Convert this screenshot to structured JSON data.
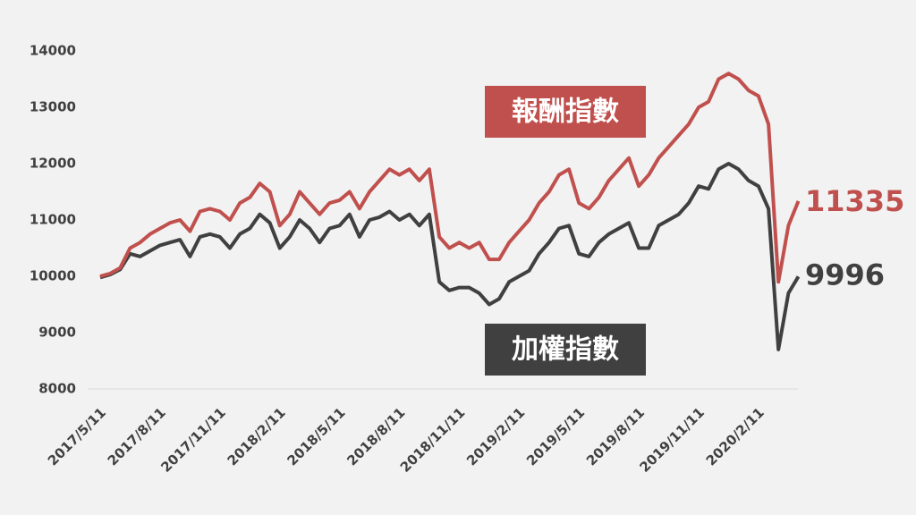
{
  "chart_data": {
    "type": "line",
    "categories": [
      "2017/5/11",
      null,
      null,
      null,
      null,
      null,
      "2017/8/11",
      null,
      null,
      null,
      null,
      null,
      "2017/11/11",
      null,
      null,
      null,
      null,
      null,
      "2018/2/11",
      null,
      null,
      null,
      null,
      null,
      "2018/5/11",
      null,
      null,
      null,
      null,
      null,
      "2018/8/11",
      null,
      null,
      null,
      null,
      null,
      "2018/11/11",
      null,
      null,
      null,
      null,
      null,
      "2019/2/11",
      null,
      null,
      null,
      null,
      null,
      "2019/5/11",
      null,
      null,
      null,
      null,
      null,
      "2019/8/11",
      null,
      null,
      null,
      null,
      null,
      "2019/11/11",
      null,
      null,
      null,
      null,
      null,
      "2020/2/11",
      null,
      null,
      null,
      null
    ],
    "series": [
      {
        "name": "報酬指數",
        "color": "#c0504d",
        "values": [
          10000,
          10050,
          10150,
          10500,
          10600,
          10750,
          10850,
          10950,
          11000,
          10800,
          11150,
          11200,
          11150,
          11000,
          11300,
          11400,
          11650,
          11500,
          10900,
          11100,
          11500,
          11300,
          11100,
          11300,
          11350,
          11500,
          11200,
          11500,
          11700,
          11900,
          11800,
          11900,
          11700,
          11900,
          10700,
          10500,
          10600,
          10500,
          10600,
          10300,
          10300,
          10600,
          10800,
          11000,
          11300,
          11500,
          11800,
          11900,
          11300,
          11200,
          11400,
          11700,
          11900,
          12100,
          11600,
          11800,
          12100,
          12300,
          12500,
          12700,
          13000,
          13100,
          13500,
          13600,
          13500,
          13300,
          13200,
          12700,
          9900,
          10900,
          11335
        ]
      },
      {
        "name": "加權指數",
        "color": "#404040",
        "values": [
          9980,
          10030,
          10120,
          10400,
          10350,
          10450,
          10550,
          10600,
          10650,
          10350,
          10700,
          10750,
          10700,
          10500,
          10750,
          10850,
          11100,
          10950,
          10500,
          10700,
          11000,
          10850,
          10600,
          10850,
          10900,
          11100,
          10700,
          11000,
          11050,
          11150,
          11000,
          11100,
          10900,
          11100,
          9900,
          9750,
          9800,
          9800,
          9700,
          9500,
          9600,
          9900,
          10000,
          10100,
          10400,
          10600,
          10850,
          10900,
          10400,
          10350,
          10600,
          10750,
          10850,
          10950,
          10500,
          10500,
          10900,
          11000,
          11100,
          11300,
          11600,
          11550,
          11900,
          12000,
          11900,
          11700,
          11600,
          11200,
          8700,
          9700,
          9996
        ]
      }
    ],
    "ylim": [
      8000,
      14000
    ],
    "yticks": [
      8000,
      9000,
      10000,
      11000,
      12000,
      13000,
      14000
    ]
  }
}
